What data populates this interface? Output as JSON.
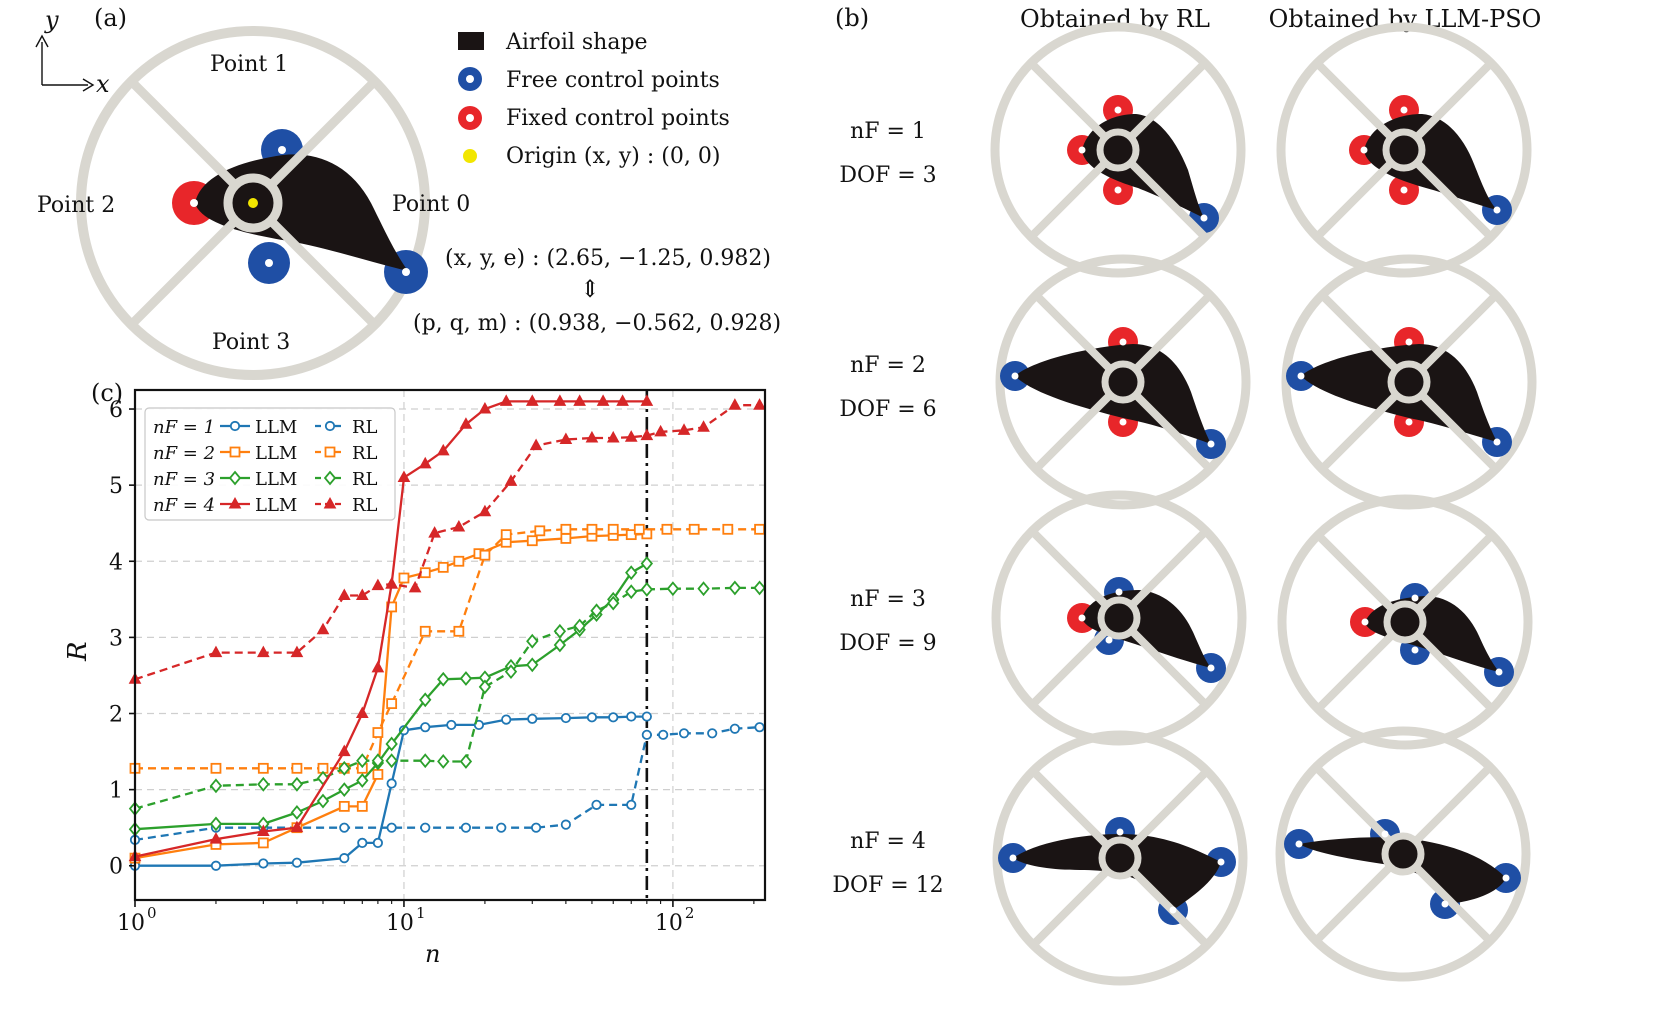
{
  "panel_a": {
    "label": "(a)",
    "axis_y": "y",
    "axis_x": "x",
    "point_labels": [
      "Point 0",
      "Point 1",
      "Point 2",
      "Point 3"
    ],
    "legend": [
      {
        "key": "airfoil",
        "text": "Airfoil shape"
      },
      {
        "key": "free",
        "text": "Free control points"
      },
      {
        "key": "fixed",
        "text": "Fixed control points"
      },
      {
        "key": "origin",
        "text": "Origin (x, y) : (0, 0)"
      }
    ],
    "eq_line1": "(x, y, e) : (2.65, −1.25, 0.982)",
    "eq_arrow": "⇕",
    "eq_line2": "(p, q, m) : (0.938, −0.562, 0.928)"
  },
  "panel_b": {
    "label": "(b)",
    "col_titles": [
      "Obtained by RL",
      "Obtained by LLM-PSO"
    ],
    "rows": [
      {
        "nf": "nF = 1",
        "dof": "DOF = 3"
      },
      {
        "nf": "nF = 2",
        "dof": "DOF = 6"
      },
      {
        "nf": "nF = 3",
        "dof": "DOF = 9"
      },
      {
        "nf": "nF = 4",
        "dof": "DOF = 12"
      }
    ]
  },
  "panel_c": {
    "label": "(c)"
  },
  "colors": {
    "blue": "#1f77b4",
    "orange": "#ff7f0e",
    "green": "#2ca02c",
    "red": "#d62728",
    "free_point": "#1f4fa5",
    "fixed_point": "#e8262a",
    "airfoil": "#1a1414",
    "wheel": "#d9d7d0",
    "origin": "#f2e600"
  },
  "chart_data": {
    "type": "line",
    "xscale": "log",
    "xlabel": "n",
    "ylabel": "R",
    "xlim": [
      1,
      220
    ],
    "ylim": [
      -0.45,
      6.25
    ],
    "xticks": [
      "10^0",
      "10^1",
      "10^2"
    ],
    "yticks": [
      0,
      1,
      2,
      3,
      4,
      5,
      6
    ],
    "vline_x": 80,
    "grid": true,
    "legend_position": "top-left",
    "legend_rows": [
      "nF = 1",
      "nF = 2",
      "nF = 3",
      "nF = 4"
    ],
    "legend_methods": [
      "LLM",
      "RL"
    ],
    "series": [
      {
        "name": "nF = 1 LLM",
        "color": "blue",
        "style": "solid",
        "marker": "o",
        "x": [
          1,
          2,
          3,
          4,
          6,
          7,
          8,
          9,
          10,
          12,
          15,
          19,
          24,
          30,
          40,
          50,
          60,
          70,
          80
        ],
        "y": [
          0,
          0,
          0.03,
          0.04,
          0.1,
          0.3,
          0.3,
          1.08,
          1.78,
          1.82,
          1.85,
          1.85,
          1.92,
          1.93,
          1.94,
          1.95,
          1.95,
          1.96,
          1.96
        ]
      },
      {
        "name": "nF = 1 RL",
        "color": "blue",
        "style": "dashed",
        "marker": "o",
        "x": [
          1,
          2,
          3,
          4,
          6,
          9,
          12,
          17,
          23,
          31,
          40,
          52,
          70,
          80,
          92,
          110,
          140,
          170,
          210
        ],
        "y": [
          0.34,
          0.5,
          0.5,
          0.5,
          0.5,
          0.5,
          0.5,
          0.5,
          0.5,
          0.5,
          0.54,
          0.8,
          0.8,
          1.72,
          1.72,
          1.74,
          1.74,
          1.8,
          1.82
        ]
      },
      {
        "name": "nF = 2 LLM",
        "color": "orange",
        "style": "solid",
        "marker": "s",
        "x": [
          1,
          2,
          3,
          4,
          6,
          7,
          8,
          9,
          10,
          12,
          14,
          16,
          19,
          24,
          30,
          40,
          50,
          60,
          70,
          80
        ],
        "y": [
          0.1,
          0.28,
          0.3,
          0.5,
          0.78,
          0.78,
          1.2,
          3.4,
          3.78,
          3.85,
          3.92,
          4.0,
          4.1,
          4.25,
          4.27,
          4.3,
          4.33,
          4.34,
          4.35,
          4.36
        ]
      },
      {
        "name": "nF = 2 RL",
        "color": "orange",
        "style": "dashed",
        "marker": "s",
        "x": [
          1,
          2,
          3,
          4,
          5,
          6,
          7,
          8,
          9,
          12,
          16,
          20,
          24,
          32,
          40,
          50,
          60,
          75,
          95,
          120,
          160,
          210
        ],
        "y": [
          1.28,
          1.28,
          1.28,
          1.28,
          1.28,
          1.28,
          1.28,
          1.75,
          2.13,
          3.08,
          3.08,
          4.08,
          4.35,
          4.4,
          4.42,
          4.42,
          4.42,
          4.42,
          4.42,
          4.42,
          4.42,
          4.42
        ]
      },
      {
        "name": "nF = 3 LLM",
        "color": "green",
        "style": "solid",
        "marker": "d",
        "x": [
          1,
          2,
          3,
          4,
          5,
          6,
          7,
          8,
          9,
          12,
          14,
          17,
          20,
          25,
          30,
          38,
          45,
          52,
          60,
          70,
          80
        ],
        "y": [
          0.48,
          0.55,
          0.55,
          0.7,
          0.85,
          1.0,
          1.12,
          1.35,
          1.6,
          2.18,
          2.45,
          2.46,
          2.47,
          2.62,
          2.64,
          2.9,
          3.1,
          3.3,
          3.5,
          3.85,
          3.97
        ]
      },
      {
        "name": "nF = 3 RL",
        "color": "green",
        "style": "dashed",
        "marker": "d",
        "x": [
          1,
          2,
          3,
          4,
          5,
          6,
          7,
          8,
          9,
          12,
          14,
          17,
          20,
          25,
          30,
          38,
          45,
          52,
          60,
          70,
          80,
          100,
          130,
          170,
          210
        ],
        "y": [
          0.75,
          1.05,
          1.07,
          1.07,
          1.15,
          1.28,
          1.38,
          1.38,
          1.38,
          1.38,
          1.37,
          1.37,
          2.35,
          2.55,
          2.95,
          3.08,
          3.15,
          3.35,
          3.45,
          3.6,
          3.63,
          3.64,
          3.64,
          3.65,
          3.65
        ]
      },
      {
        "name": "nF = 4 LLM",
        "color": "red",
        "style": "solid",
        "marker": "^",
        "x": [
          1,
          2,
          3,
          4,
          6,
          7,
          8,
          9,
          10,
          12,
          14,
          17,
          20,
          24,
          30,
          38,
          45,
          55,
          65,
          80
        ],
        "y": [
          0.12,
          0.35,
          0.45,
          0.5,
          1.5,
          2.0,
          2.6,
          3.7,
          5.1,
          5.28,
          5.45,
          5.8,
          6.0,
          6.1,
          6.1,
          6.1,
          6.1,
          6.1,
          6.1,
          6.1
        ]
      },
      {
        "name": "nF = 4 RL",
        "color": "red",
        "style": "dashed",
        "marker": "^",
        "x": [
          1,
          2,
          3,
          4,
          5,
          6,
          7,
          8,
          9,
          11,
          13,
          16,
          20,
          25,
          31,
          40,
          50,
          60,
          70,
          80,
          90,
          110,
          130,
          170,
          210
        ],
        "y": [
          2.45,
          2.8,
          2.8,
          2.8,
          3.1,
          3.55,
          3.55,
          3.68,
          3.7,
          3.65,
          4.37,
          4.45,
          4.65,
          5.05,
          5.52,
          5.6,
          5.62,
          5.62,
          5.63,
          5.65,
          5.7,
          5.72,
          5.76,
          6.05,
          6.05
        ]
      }
    ]
  }
}
